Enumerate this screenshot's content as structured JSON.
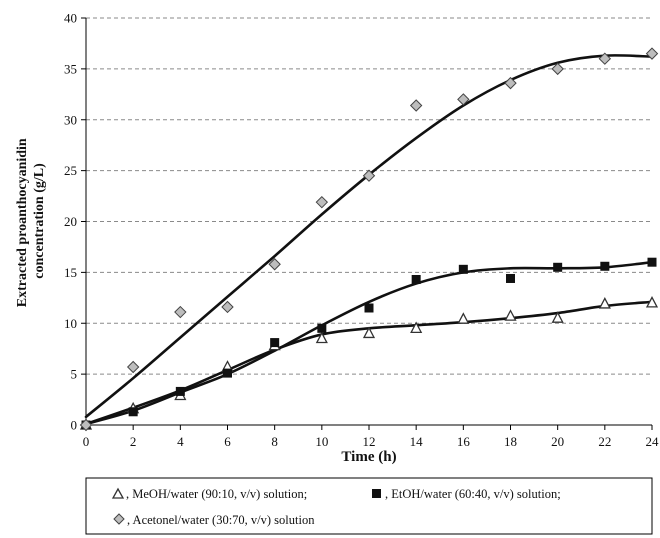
{
  "chart_data": {
    "type": "scatter",
    "xlabel": "Time (h)",
    "ylabel_lines": [
      "Extracted proanthocyanidin",
      "concentration (g/L)"
    ],
    "xlim": [
      0,
      24
    ],
    "ylim": [
      0,
      40
    ],
    "x_ticks": [
      0,
      2,
      4,
      6,
      8,
      10,
      12,
      14,
      16,
      18,
      20,
      22,
      24
    ],
    "y_ticks": [
      0,
      5,
      10,
      15,
      20,
      25,
      30,
      35,
      40
    ],
    "grid": "horizontal-dashed",
    "legend_position": "bottom",
    "series": [
      {
        "name": ", MeOH/water (90:10, v/v) solution;",
        "marker": "triangle",
        "points": [
          [
            0,
            0
          ],
          [
            2,
            1.6
          ],
          [
            4,
            2.9
          ],
          [
            6,
            5.7
          ],
          [
            8,
            7.8
          ],
          [
            10,
            8.5
          ],
          [
            12,
            9.0
          ],
          [
            14,
            9.5
          ],
          [
            16,
            10.4
          ],
          [
            18,
            10.7
          ],
          [
            20,
            10.5
          ],
          [
            22,
            11.9
          ],
          [
            24,
            12.0
          ]
        ],
        "curve": [
          [
            0,
            0.1
          ],
          [
            2,
            1.7
          ],
          [
            4,
            3.4
          ],
          [
            6,
            5.4
          ],
          [
            8,
            7.4
          ],
          [
            10,
            8.9
          ],
          [
            12,
            9.5
          ],
          [
            14,
            9.8
          ],
          [
            16,
            10.1
          ],
          [
            18,
            10.5
          ],
          [
            20,
            11.0
          ],
          [
            22,
            11.7
          ],
          [
            24,
            12.1
          ]
        ]
      },
      {
        "name": ", EtOH/water (60:40, v/v) solution;",
        "marker": "square",
        "points": [
          [
            0,
            0
          ],
          [
            2,
            1.3
          ],
          [
            4,
            3.3
          ],
          [
            6,
            5.1
          ],
          [
            8,
            8.1
          ],
          [
            10,
            9.5
          ],
          [
            12,
            11.5
          ],
          [
            14,
            14.3
          ],
          [
            16,
            15.3
          ],
          [
            18,
            14.4
          ],
          [
            20,
            15.5
          ],
          [
            22,
            15.6
          ],
          [
            24,
            16.0
          ]
        ],
        "curve": [
          [
            0,
            0.1
          ],
          [
            2,
            1.4
          ],
          [
            4,
            3.2
          ],
          [
            6,
            5.0
          ],
          [
            8,
            7.3
          ],
          [
            10,
            9.8
          ],
          [
            12,
            12.1
          ],
          [
            14,
            13.9
          ],
          [
            16,
            15.0
          ],
          [
            18,
            15.4
          ],
          [
            20,
            15.4
          ],
          [
            22,
            15.5
          ],
          [
            24,
            16.0
          ]
        ]
      },
      {
        "name": ", Acetonel/water (30:70, v/v) solution",
        "marker": "diamond",
        "points": [
          [
            0,
            0
          ],
          [
            2,
            5.7
          ],
          [
            4,
            11.1
          ],
          [
            6,
            11.6
          ],
          [
            8,
            15.8
          ],
          [
            10,
            21.9
          ],
          [
            12,
            24.5
          ],
          [
            14,
            31.4
          ],
          [
            16,
            32.0
          ],
          [
            18,
            33.6
          ],
          [
            20,
            35.0
          ],
          [
            22,
            36.0
          ],
          [
            24,
            36.5
          ]
        ],
        "curve": [
          [
            0,
            0.8
          ],
          [
            2,
            4.6
          ],
          [
            4,
            8.6
          ],
          [
            6,
            12.6
          ],
          [
            8,
            16.6
          ],
          [
            10,
            20.7
          ],
          [
            12,
            24.6
          ],
          [
            14,
            28.2
          ],
          [
            16,
            31.4
          ],
          [
            18,
            33.9
          ],
          [
            20,
            35.6
          ],
          [
            22,
            36.3
          ],
          [
            24,
            36.2
          ]
        ]
      }
    ]
  }
}
